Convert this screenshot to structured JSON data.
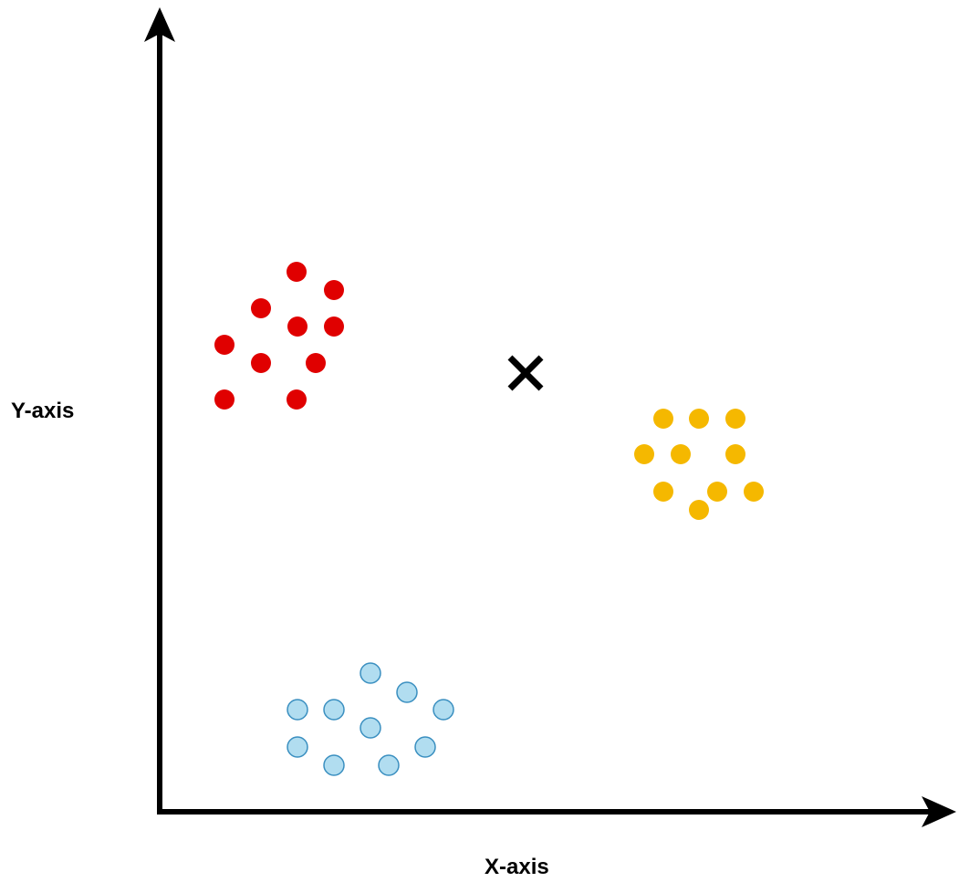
{
  "chart_data": {
    "type": "scatter",
    "xlabel": "X-axis",
    "ylabel": "Y-axis",
    "grid": false,
    "axis_color": "#000000",
    "series": [
      {
        "color": "#e00000",
        "points": [
          [
            325,
            298
          ],
          [
            366,
            318
          ],
          [
            286,
            338
          ],
          [
            326,
            358
          ],
          [
            366,
            358
          ],
          [
            246,
            378
          ],
          [
            286,
            398
          ],
          [
            346,
            398
          ],
          [
            246,
            438
          ],
          [
            325,
            438
          ]
        ]
      },
      {
        "color": "#f5b800",
        "points": [
          [
            727,
            459
          ],
          [
            766,
            459
          ],
          [
            806,
            459
          ],
          [
            706,
            498
          ],
          [
            746,
            498
          ],
          [
            806,
            498
          ],
          [
            727,
            539
          ],
          [
            786,
            539
          ],
          [
            826,
            539
          ],
          [
            766,
            559
          ]
        ]
      },
      {
        "color": "#b1ddf0",
        "outline": "#3a8fc0",
        "points": [
          [
            406,
            738
          ],
          [
            446,
            759
          ],
          [
            326,
            778
          ],
          [
            366,
            778
          ],
          [
            486,
            778
          ],
          [
            406,
            798
          ],
          [
            326,
            819
          ],
          [
            466,
            819
          ],
          [
            366,
            839
          ],
          [
            426,
            839
          ]
        ]
      }
    ],
    "marker": {
      "symbol": "×",
      "color": "#000000",
      "point": [
        576,
        409
      ]
    }
  }
}
